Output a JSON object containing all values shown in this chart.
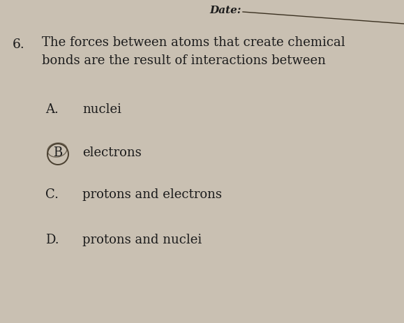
{
  "background_color": "#c9c0b2",
  "header_text": "Date:",
  "question_number": "6.",
  "question_line1": "The forces between atoms that create chemical",
  "question_line2": "bonds are the result of interactions between",
  "options": [
    {
      "label": "A.",
      "text": "nuclei",
      "circled": false
    },
    {
      "label": "B",
      "text": "electrons",
      "circled": true
    },
    {
      "label": "C.",
      "text": "protons and electrons",
      "circled": false
    },
    {
      "label": "D.",
      "text": "protons and nuclei",
      "circled": false
    }
  ],
  "font_color": "#1c1c1c",
  "font_size_question": 13.0,
  "font_size_options": 13.0,
  "font_size_number": 13.5,
  "circle_color": "#4a4030",
  "date_line_color": "#3a3020"
}
